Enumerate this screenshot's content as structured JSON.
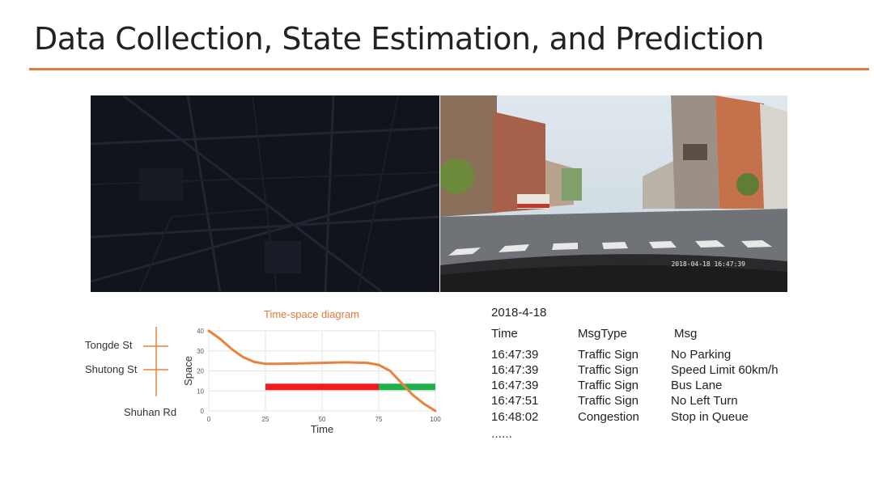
{
  "slide": {
    "title": "Data Collection, State Estimation, and Prediction",
    "accent_color": "#e07b39"
  },
  "media": {
    "map_panel": {
      "icon": "map-image"
    },
    "camera_panel": {
      "icon": "dashcam-image",
      "timestamp": "2018-04-18 16:47:39"
    }
  },
  "streets": {
    "tongde": "Tongde St",
    "shutong": "Shutong St",
    "shuhan": "Shuhan Rd"
  },
  "chart_data": {
    "type": "line",
    "title": "Time-space diagram",
    "xlabel": "Time",
    "ylabel": "Space",
    "xlim": [
      0,
      100
    ],
    "ylim": [
      0,
      40
    ],
    "x_ticks": [
      "0",
      "25",
      "50",
      "75",
      "100"
    ],
    "y_ticks": [
      "0",
      "10",
      "20",
      "30",
      "40"
    ],
    "series": [
      {
        "color": "#e8823f",
        "x": [
          0,
          5,
          10,
          15,
          20,
          25,
          30,
          40,
          50,
          60,
          70,
          75,
          80,
          85,
          90,
          95,
          100
        ],
        "y": [
          40,
          36,
          31,
          27,
          24.5,
          23.5,
          23.5,
          23.7,
          24,
          24.3,
          24,
          23,
          20,
          14,
          8,
          3.5,
          0
        ]
      }
    ],
    "signal_bar": [
      {
        "state": "red",
        "color": "#ee1c1c",
        "x": [
          25,
          75
        ],
        "y": 12
      },
      {
        "state": "green",
        "color": "#1fb14b",
        "x": [
          75,
          100
        ],
        "y": 12
      }
    ],
    "grid": true
  },
  "messages": {
    "date": "2018-4-18",
    "headers": {
      "time": "Time",
      "type": "MsgType",
      "msg": "Msg"
    },
    "rows": [
      {
        "time": "16:47:39",
        "type": "Traffic Sign",
        "msg": "No Parking"
      },
      {
        "time": "16:47:39",
        "type": "Traffic Sign",
        "msg": "Speed Limit 60km/h"
      },
      {
        "time": "16:47:39",
        "type": "Traffic Sign",
        "msg": "Bus Lane"
      },
      {
        "time": "16:47:51",
        "type": "Traffic Sign",
        "msg": "No Left Turn"
      },
      {
        "time": "16:48:02",
        "type": "Congestion",
        "msg": "Stop in Queue"
      }
    ],
    "ellipsis": "……"
  }
}
